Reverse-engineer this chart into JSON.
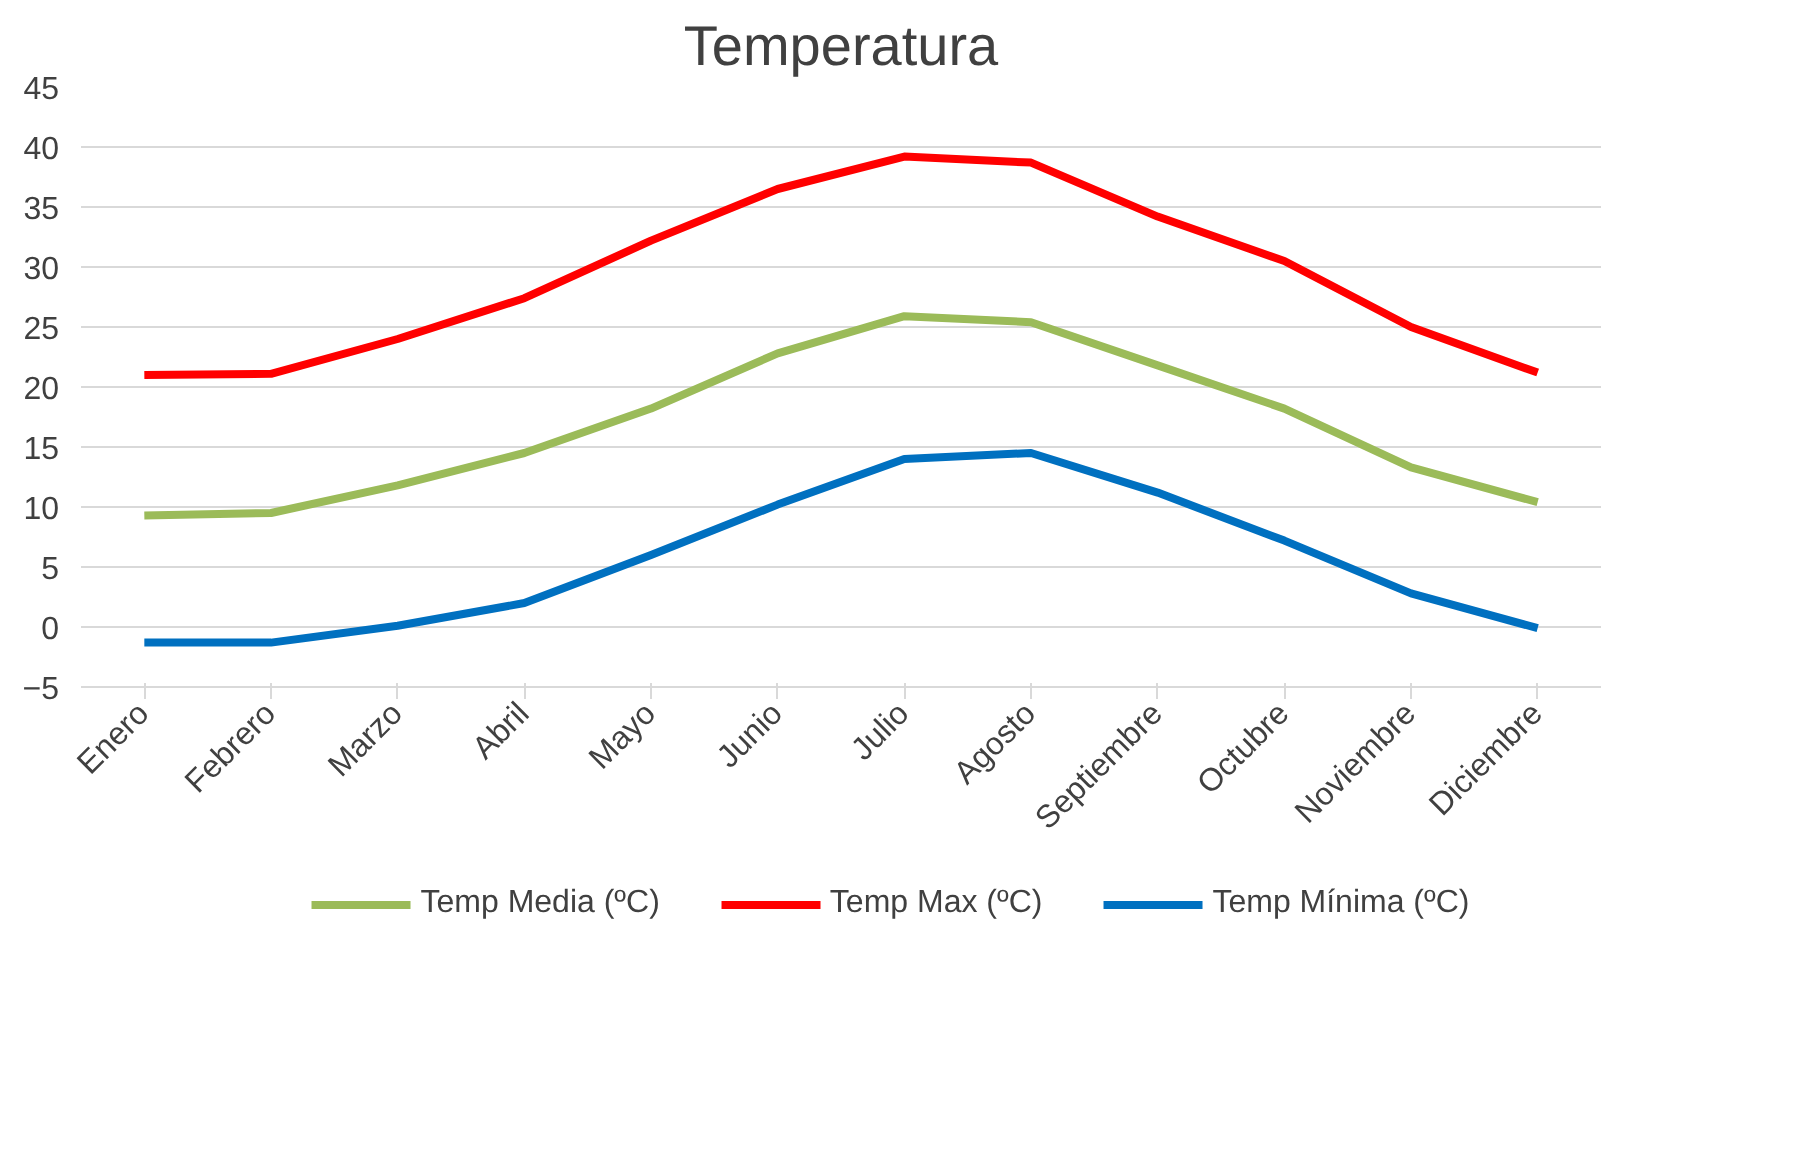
{
  "chart_data": {
    "type": "line",
    "title": "Temperatura",
    "categories": [
      "Enero",
      "Febrero",
      "Marzo",
      "Abril",
      "Mayo",
      "Junio",
      "Julio",
      "Agosto",
      "Septiembre",
      "Octubre",
      "Noviembre",
      "Diciembre"
    ],
    "series": [
      {
        "name": "Temp Media (ºC)",
        "color": "#9bbb59",
        "values": [
          9.3,
          9.5,
          11.8,
          14.5,
          18.2,
          22.8,
          25.9,
          25.4,
          21.8,
          18.2,
          13.3,
          10.4
        ]
      },
      {
        "name": "Temp Max (ºC)",
        "color": "#ff0000",
        "values": [
          21,
          21.1,
          24,
          27.4,
          32.2,
          36.5,
          39.2,
          38.7,
          34.2,
          30.5,
          25,
          21.2
        ]
      },
      {
        "name": "Temp Mínima (ºC)",
        "color": "#0070c0",
        "values": [
          -1.3,
          -1.3,
          0.1,
          2,
          6,
          10.2,
          14,
          14.5,
          11.2,
          7.2,
          2.8,
          -0.1
        ]
      }
    ],
    "ylim": [
      -5,
      45
    ],
    "yticks": [
      -5,
      0,
      5,
      10,
      15,
      20,
      25,
      30,
      35,
      40,
      45
    ],
    "grid": "y",
    "legend": "bottom",
    "marker": "none",
    "line_style": "solid"
  }
}
